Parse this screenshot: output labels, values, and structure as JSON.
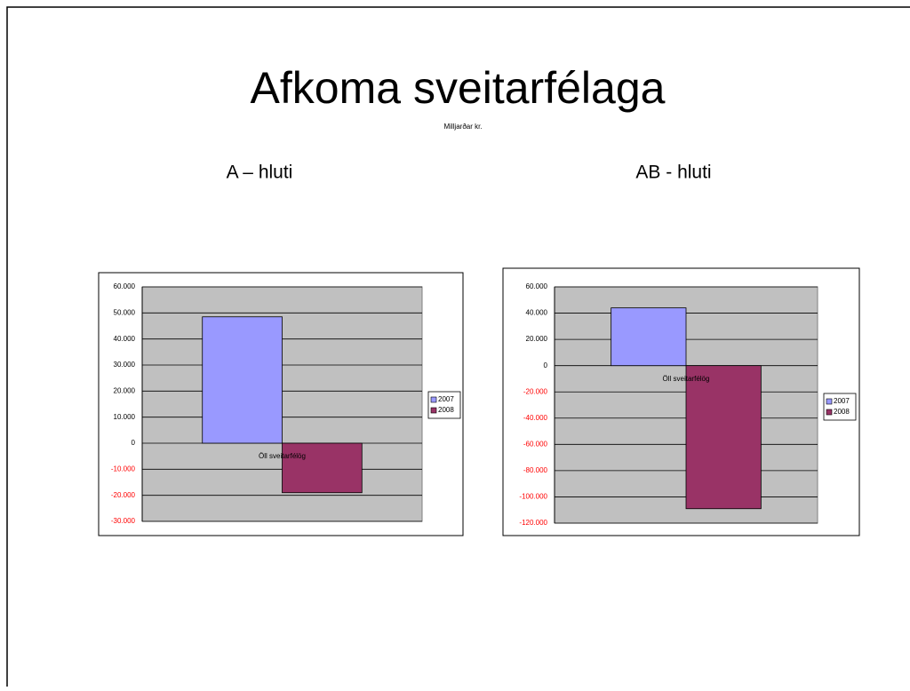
{
  "title": "Afkoma sveitarfélaga",
  "subtitle": "Milljarðar kr.",
  "chart_data": [
    {
      "type": "bar",
      "title": "A – hluti",
      "categories": [
        "Öll sveitarfélög"
      ],
      "series": [
        {
          "name": "2007",
          "color": "#9999ff",
          "values": [
            48500
          ]
        },
        {
          "name": "2008",
          "color": "#993366",
          "values": [
            -19000
          ]
        }
      ],
      "ylim": [
        -30000,
        60000
      ],
      "yticks": [
        {
          "value": 60000,
          "label": "60.000"
        },
        {
          "value": 50000,
          "label": "50.000"
        },
        {
          "value": 40000,
          "label": "40.000"
        },
        {
          "value": 30000,
          "label": "30.000"
        },
        {
          "value": 20000,
          "label": "20.000"
        },
        {
          "value": 10000,
          "label": "10.000"
        },
        0,
        {
          "value": -10000,
          "label": "-10.000"
        },
        {
          "value": -20000,
          "label": "-20.000"
        },
        {
          "value": -30000,
          "label": "-30.000"
        }
      ],
      "grid": true,
      "legend": "right",
      "plot_background": "#c0c0c0",
      "negative_tick_color": "#ff0000"
    },
    {
      "type": "bar",
      "title": "AB - hluti",
      "categories": [
        "Öll sveitarfélög"
      ],
      "series": [
        {
          "name": "2007",
          "color": "#9999ff",
          "values": [
            44000
          ]
        },
        {
          "name": "2008",
          "color": "#993366",
          "values": [
            -109000
          ]
        }
      ],
      "ylim": [
        -120000,
        60000
      ],
      "yticks": [
        {
          "value": 60000,
          "label": "60.000"
        },
        {
          "value": 40000,
          "label": "40.000"
        },
        {
          "value": 20000,
          "label": "20.000"
        },
        0,
        {
          "value": -20000,
          "label": "-20.000"
        },
        {
          "value": -40000,
          "label": "-40.000"
        },
        {
          "value": -60000,
          "label": "-60.000"
        },
        {
          "value": -80000,
          "label": "-80.000"
        },
        {
          "value": -100000,
          "label": "-100.000"
        },
        {
          "value": -120000,
          "label": "-120.000"
        }
      ],
      "grid": true,
      "legend": "right",
      "plot_background": "#c0c0c0",
      "negative_tick_color": "#ff0000"
    }
  ]
}
